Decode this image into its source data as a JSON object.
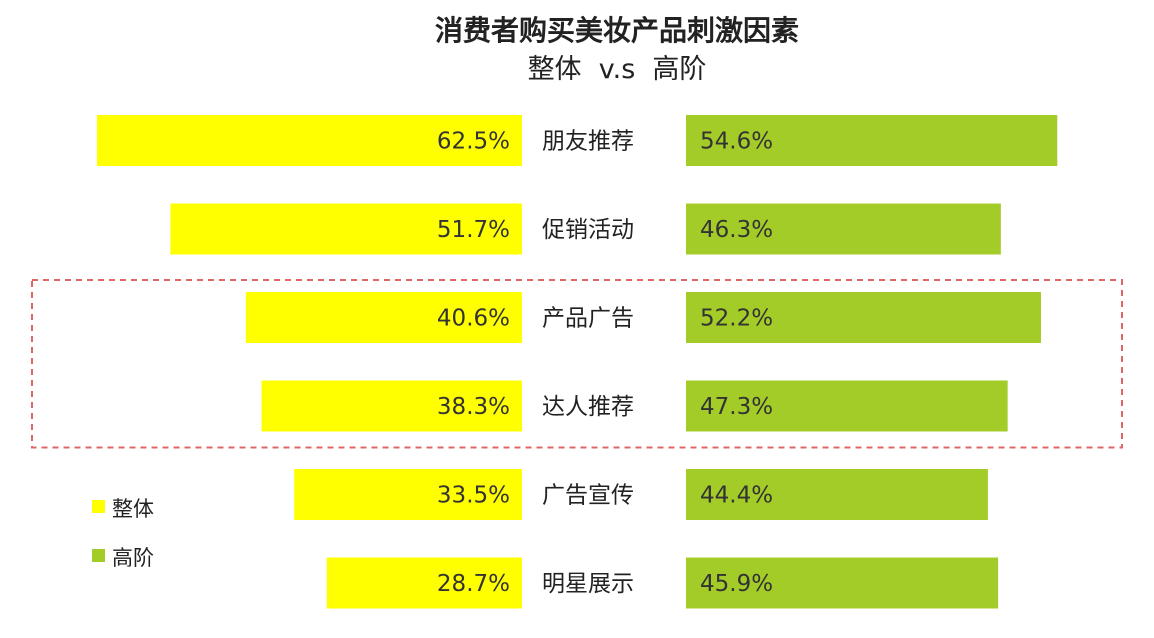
{
  "chart_data": {
    "type": "bar",
    "orientation": "horizontal-butterfly",
    "title": "消费者购买美妆产品刺激因素",
    "subtitle": "整体  v.s  高阶",
    "categories": [
      "朋友推荐",
      "促销活动",
      "产品广告",
      "达人推荐",
      "广告宣传",
      "明星展示"
    ],
    "series": [
      {
        "name": "整体",
        "values": [
          62.5,
          51.7,
          40.6,
          38.3,
          33.5,
          28.7
        ],
        "labels": [
          "62.5%",
          "51.7%",
          "40.6%",
          "38.3%",
          "33.5%",
          "28.7%"
        ],
        "color": "#ffff00"
      },
      {
        "name": "高阶",
        "values": [
          54.6,
          46.3,
          52.2,
          47.3,
          44.4,
          45.9
        ],
        "labels": [
          "54.6%",
          "46.3%",
          "52.2%",
          "47.3%",
          "44.4%",
          "45.9%"
        ],
        "color": "#a4cc28"
      }
    ],
    "highlight_categories": [
      "产品广告",
      "达人推荐"
    ],
    "highlight_color": "#e06666",
    "legend_position": "bottom-left",
    "value_unit": "%"
  }
}
